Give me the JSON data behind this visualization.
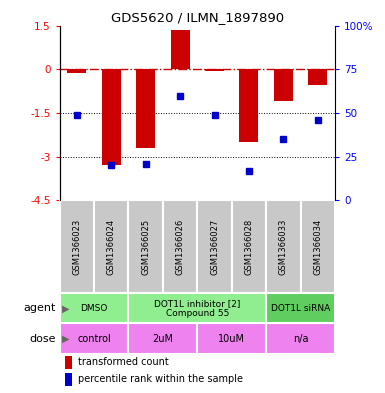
{
  "title": "GDS5620 / ILMN_1897890",
  "samples": [
    "GSM1366023",
    "GSM1366024",
    "GSM1366025",
    "GSM1366026",
    "GSM1366027",
    "GSM1366028",
    "GSM1366033",
    "GSM1366034"
  ],
  "bar_values": [
    -0.12,
    -3.3,
    -2.7,
    1.35,
    -0.05,
    -2.5,
    -1.1,
    -0.55
  ],
  "dot_values": [
    49,
    20,
    21,
    60,
    49,
    17,
    35,
    46
  ],
  "ylim_left": [
    -4.5,
    1.5
  ],
  "ylim_right": [
    0,
    100
  ],
  "bar_color": "#cc0000",
  "dot_color": "#0000cc",
  "agent_groups": [
    {
      "label": "DMSO",
      "start": 0,
      "end": 2,
      "color": "#90ee90"
    },
    {
      "label": "DOT1L inhibitor [2]\nCompound 55",
      "start": 2,
      "end": 6,
      "color": "#90ee90"
    },
    {
      "label": "DOT1L siRNA",
      "start": 6,
      "end": 8,
      "color": "#5fcd5f"
    }
  ],
  "dose_groups": [
    {
      "label": "control",
      "start": 0,
      "end": 2,
      "color": "#ee82ee"
    },
    {
      "label": "2uM",
      "start": 2,
      "end": 4,
      "color": "#ee82ee"
    },
    {
      "label": "10uM",
      "start": 4,
      "end": 6,
      "color": "#ee82ee"
    },
    {
      "label": "n/a",
      "start": 6,
      "end": 8,
      "color": "#ee82ee"
    }
  ],
  "legend_bar_label": "transformed count",
  "legend_dot_label": "percentile rank within the sample",
  "tick_labels_left": [
    "1.5",
    "0",
    "-1.5",
    "-3",
    "-4.5"
  ],
  "tick_vals_left": [
    1.5,
    0.0,
    -1.5,
    -3.0,
    -4.5
  ],
  "tick_labels_right": [
    "100%",
    "75",
    "50",
    "25",
    "0"
  ],
  "tick_vals_right": [
    100,
    75,
    50,
    25,
    0
  ],
  "gray_cell_color": "#c8c8c8",
  "cell_edge_color": "#ffffff"
}
